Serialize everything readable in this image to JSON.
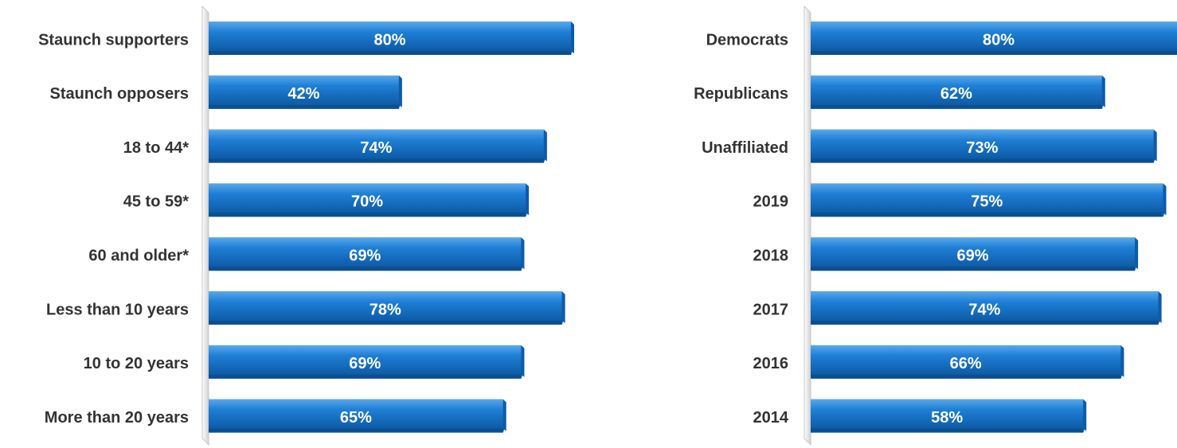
{
  "chart_data": [
    {
      "type": "bar",
      "orientation": "horizontal",
      "categories": [
        "Staunch supporters",
        "Staunch opposers",
        "18 to 44*",
        "45 to 59*",
        "60 and older*",
        "Less than 10 years",
        "10 to 20 years",
        "More than 20 years"
      ],
      "values": [
        80,
        42,
        74,
        70,
        69,
        78,
        69,
        65
      ],
      "value_labels": [
        "80%",
        "42%",
        "74%",
        "70%",
        "69%",
        "78%",
        "69%",
        "65%"
      ],
      "unit": "%",
      "xlim": [
        0,
        80
      ],
      "grid": false,
      "legend": "none",
      "colors": {
        "bar": "#1f7fd6",
        "bar_dark": "#0d5ba6",
        "bar_light": "#5aa9ec",
        "label": "#333333",
        "value_label": "#ffffff",
        "axis": "#c8c8c8"
      }
    },
    {
      "type": "bar",
      "orientation": "horizontal",
      "categories": [
        "Democrats",
        "Republicans",
        "Unaffiliated",
        "2019",
        "2018",
        "2017",
        "2016",
        "2014"
      ],
      "values": [
        80,
        62,
        73,
        75,
        69,
        74,
        66,
        58
      ],
      "value_labels": [
        "80%",
        "62%",
        "73%",
        "75%",
        "69%",
        "74%",
        "66%",
        "58%"
      ],
      "unit": "%",
      "xlim": [
        0,
        80
      ],
      "grid": false,
      "legend": "none",
      "colors": {
        "bar": "#1f7fd6",
        "bar_dark": "#0d5ba6",
        "bar_light": "#5aa9ec",
        "label": "#333333",
        "value_label": "#ffffff",
        "axis": "#c8c8c8"
      }
    }
  ]
}
